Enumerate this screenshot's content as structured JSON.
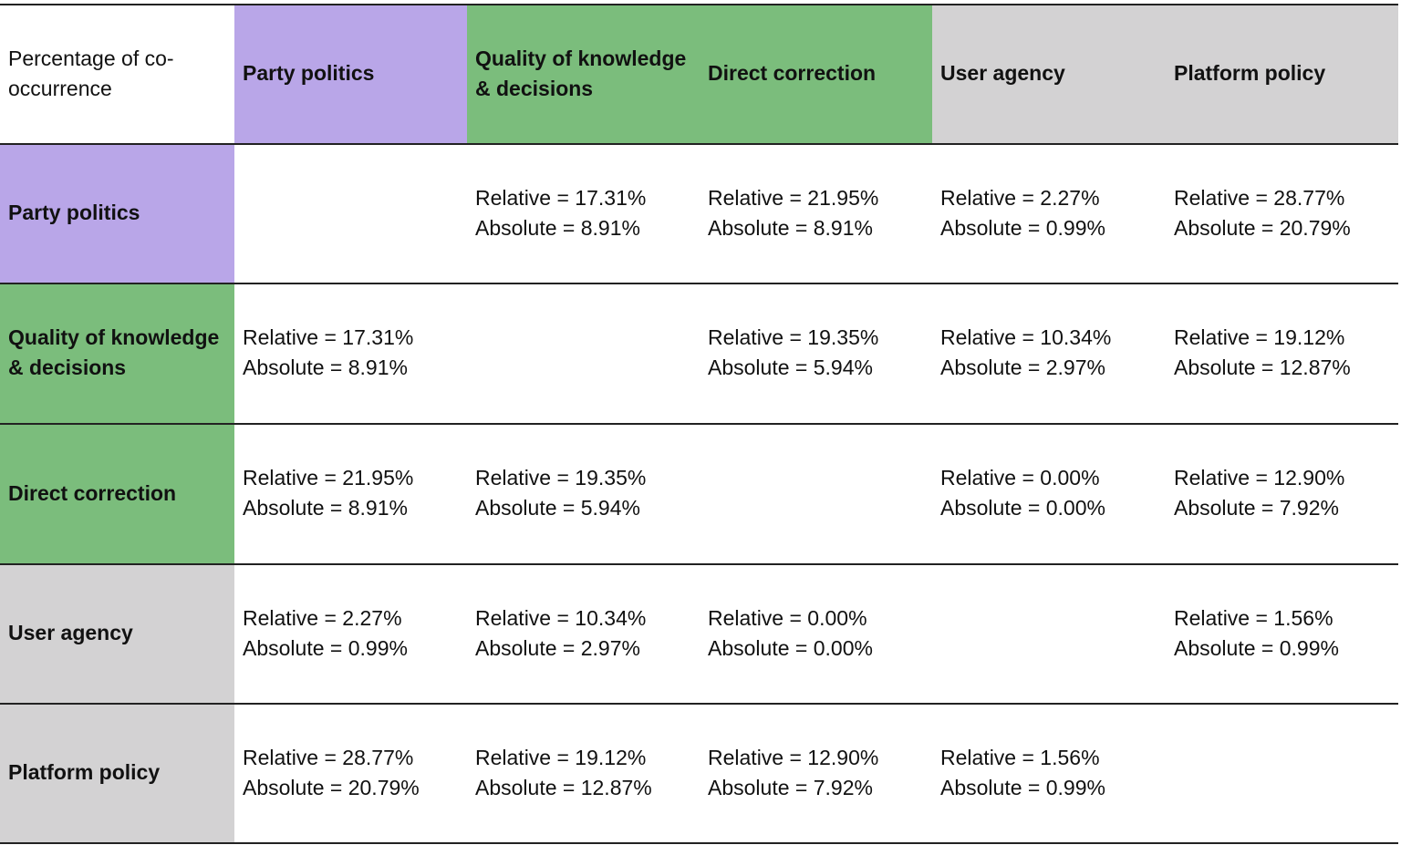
{
  "table": {
    "corner": "Percentage of co-occurrence",
    "columns": [
      {
        "label": "Party politics",
        "color": "#b9a6e8"
      },
      {
        "label": "Quality of knowledge & decisions",
        "color": "#7bbd7c"
      },
      {
        "label": "Direct correction",
        "color": "#7bbd7c"
      },
      {
        "label": "User agency",
        "color": "#d3d2d3"
      },
      {
        "label": "Platform policy",
        "color": "#d3d2d3"
      }
    ],
    "rows": [
      {
        "label": "Party politics",
        "color": "#b9a6e8",
        "cells": [
          null,
          [
            "Relative = 17.31%",
            "Absolute = 8.91%"
          ],
          [
            "Relative = 21.95%",
            "Absolute = 8.91%"
          ],
          [
            "Relative = 2.27%",
            "Absolute = 0.99%"
          ],
          [
            "Relative = 28.77%",
            "Absolute = 20.79%"
          ]
        ]
      },
      {
        "label": "Quality of knowledge & decisions",
        "color": "#7bbd7c",
        "cells": [
          [
            "Relative = 17.31%",
            "Absolute = 8.91%"
          ],
          null,
          [
            "Relative = 19.35%",
            "Absolute = 5.94%"
          ],
          [
            "Relative = 10.34%",
            "Absolute = 2.97%"
          ],
          [
            "Relative = 19.12%",
            "Absolute = 12.87%"
          ]
        ]
      },
      {
        "label": "Direct correction",
        "color": "#7bbd7c",
        "cells": [
          [
            "Relative = 21.95%",
            "Absolute = 8.91%"
          ],
          [
            "Relative = 19.35%",
            "Absolute = 5.94%"
          ],
          null,
          [
            "Relative = 0.00%",
            "Absolute = 0.00%"
          ],
          [
            "Relative = 12.90%",
            "Absolute = 7.92%"
          ]
        ]
      },
      {
        "label": "User agency",
        "color": "#d3d2d3",
        "cells": [
          [
            "Relative = 2.27%",
            "Absolute = 0.99%"
          ],
          [
            "Relative = 10.34%",
            "Absolute = 2.97%"
          ],
          [
            "Relative = 0.00%",
            "Absolute = 0.00%"
          ],
          null,
          [
            "Relative = 1.56%",
            "Absolute = 0.99%"
          ]
        ]
      },
      {
        "label": "Platform policy",
        "color": "#d3d2d3",
        "cells": [
          [
            "Relative = 28.77%",
            "Absolute = 20.79%"
          ],
          [
            "Relative = 19.12%",
            "Absolute = 12.87%"
          ],
          [
            "Relative = 12.90%",
            "Absolute = 7.92%"
          ],
          [
            "Relative = 1.56%",
            "Absolute = 0.99%"
          ],
          null
        ]
      }
    ]
  }
}
